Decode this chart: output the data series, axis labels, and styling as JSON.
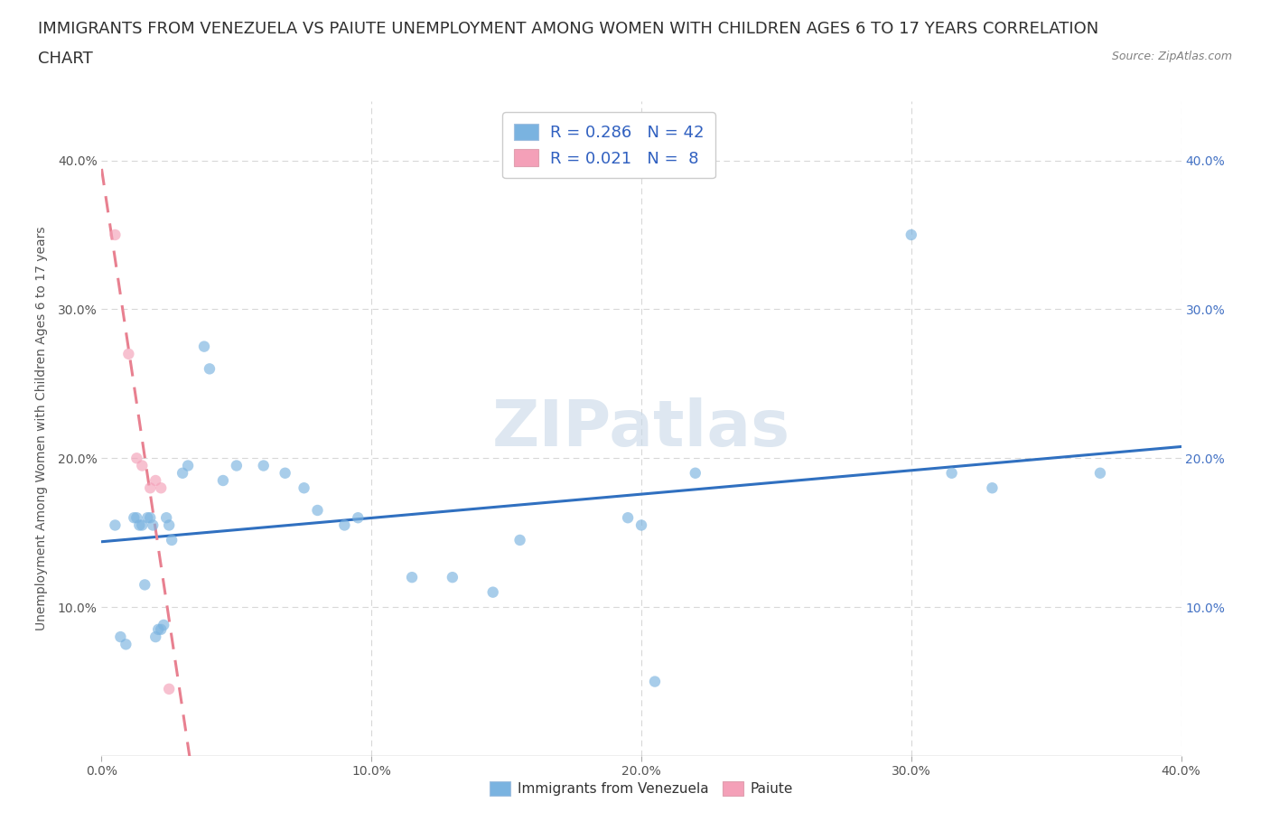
{
  "title_line1": "IMMIGRANTS FROM VENEZUELA VS PAIUTE UNEMPLOYMENT AMONG WOMEN WITH CHILDREN AGES 6 TO 17 YEARS CORRELATION",
  "title_line2": "CHART",
  "source_text": "Source: ZipAtlas.com",
  "ylabel": "Unemployment Among Women with Children Ages 6 to 17 years",
  "xlim": [
    0.0,
    0.4
  ],
  "ylim": [
    0.0,
    0.44
  ],
  "xtick_vals": [
    0.0,
    0.1,
    0.2,
    0.3,
    0.4
  ],
  "xtick_labels": [
    "0.0%",
    "10.0%",
    "20.0%",
    "30.0%",
    "40.0%"
  ],
  "ytick_vals": [
    0.1,
    0.2,
    0.3,
    0.4
  ],
  "ytick_labels": [
    "10.0%",
    "20.0%",
    "30.0%",
    "40.0%"
  ],
  "legend_entries": [
    {
      "R": "0.286",
      "N": "42"
    },
    {
      "R": "0.021",
      "N": " 8"
    }
  ],
  "watermark": "ZIPatlas",
  "blue_scatter": [
    [
      0.005,
      0.155
    ],
    [
      0.007,
      0.08
    ],
    [
      0.009,
      0.075
    ],
    [
      0.012,
      0.16
    ],
    [
      0.013,
      0.16
    ],
    [
      0.014,
      0.155
    ],
    [
      0.015,
      0.155
    ],
    [
      0.016,
      0.115
    ],
    [
      0.017,
      0.16
    ],
    [
      0.018,
      0.16
    ],
    [
      0.019,
      0.155
    ],
    [
      0.02,
      0.08
    ],
    [
      0.021,
      0.085
    ],
    [
      0.022,
      0.085
    ],
    [
      0.023,
      0.088
    ],
    [
      0.024,
      0.16
    ],
    [
      0.025,
      0.155
    ],
    [
      0.026,
      0.145
    ],
    [
      0.03,
      0.19
    ],
    [
      0.032,
      0.195
    ],
    [
      0.038,
      0.275
    ],
    [
      0.04,
      0.26
    ],
    [
      0.045,
      0.185
    ],
    [
      0.05,
      0.195
    ],
    [
      0.06,
      0.195
    ],
    [
      0.068,
      0.19
    ],
    [
      0.075,
      0.18
    ],
    [
      0.08,
      0.165
    ],
    [
      0.09,
      0.155
    ],
    [
      0.095,
      0.16
    ],
    [
      0.115,
      0.12
    ],
    [
      0.13,
      0.12
    ],
    [
      0.145,
      0.11
    ],
    [
      0.155,
      0.145
    ],
    [
      0.195,
      0.16
    ],
    [
      0.2,
      0.155
    ],
    [
      0.22,
      0.19
    ],
    [
      0.3,
      0.35
    ],
    [
      0.315,
      0.19
    ],
    [
      0.33,
      0.18
    ],
    [
      0.37,
      0.19
    ],
    [
      0.205,
      0.05
    ]
  ],
  "pink_scatter": [
    [
      0.005,
      0.35
    ],
    [
      0.01,
      0.27
    ],
    [
      0.013,
      0.2
    ],
    [
      0.015,
      0.195
    ],
    [
      0.018,
      0.18
    ],
    [
      0.02,
      0.185
    ],
    [
      0.022,
      0.18
    ],
    [
      0.025,
      0.045
    ]
  ],
  "blue_color": "#7ab3e0",
  "pink_color": "#f4a0b8",
  "blue_line_color": "#3070c0",
  "pink_line_color": "#e88090",
  "grid_color": "#d8d8d8",
  "background_color": "#ffffff",
  "title_color": "#303030",
  "source_color": "#808080",
  "title_fontsize": 13,
  "axis_label_fontsize": 10,
  "tick_fontsize": 10,
  "watermark_color": "#c8d8e8",
  "watermark_fontsize": 52,
  "scatter_size": 80,
  "scatter_alpha": 0.65,
  "line_width": 2.2
}
